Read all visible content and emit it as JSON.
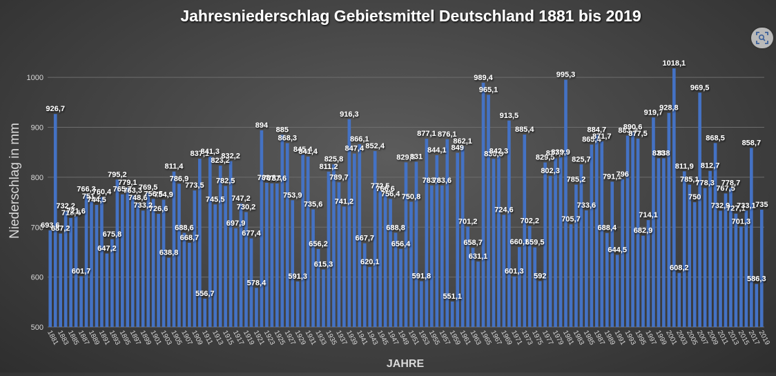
{
  "chart_data": {
    "type": "bar",
    "title": "Jahresniederschlag Gebietsmittel Deutschland 1881 bis 2019",
    "xlabel": "JAHRE",
    "ylabel": "Niederschlag in mm",
    "ylim": [
      500,
      1050
    ],
    "yticks": [
      500,
      600,
      700,
      800,
      900,
      1000
    ],
    "grid": true,
    "legend": "none",
    "bar_color": "#4472c4",
    "categories": [
      "1881",
      "1882",
      "1883",
      "1884",
      "1885",
      "1886",
      "1887",
      "1888",
      "1889",
      "1890",
      "1891",
      "1892",
      "1893",
      "1894",
      "1895",
      "1896",
      "1897",
      "1898",
      "1899",
      "1900",
      "1901",
      "1902",
      "1903",
      "1904",
      "1905",
      "1906",
      "1907",
      "1908",
      "1909",
      "1910",
      "1911",
      "1912",
      "1913",
      "1914",
      "1915",
      "1916",
      "1917",
      "1918",
      "1919",
      "1920",
      "1921",
      "1922",
      "1923",
      "1924",
      "1925",
      "1926",
      "1927",
      "1928",
      "1929",
      "1930",
      "1931",
      "1932",
      "1933",
      "1934",
      "1935",
      "1936",
      "1937",
      "1938",
      "1939",
      "1940",
      "1941",
      "1942",
      "1943",
      "1944",
      "1945",
      "1946",
      "1947",
      "1948",
      "1949",
      "1950",
      "1951",
      "1952",
      "1953",
      "1954",
      "1955",
      "1956",
      "1957",
      "1958",
      "1959",
      "1960",
      "1961",
      "1962",
      "1963",
      "1964",
      "1965",
      "1966",
      "1967",
      "1968",
      "1969",
      "1970",
      "1971",
      "1972",
      "1973",
      "1974",
      "1975",
      "1976",
      "1977",
      "1978",
      "1979",
      "1980",
      "1981",
      "1982",
      "1983",
      "1984",
      "1985",
      "1986",
      "1987",
      "1988",
      "1989",
      "1990",
      "1991",
      "1992",
      "1993",
      "1994",
      "1995",
      "1996",
      "1997",
      "1998",
      "1999",
      "2000",
      "2001",
      "2002",
      "2003",
      "2004",
      "2005",
      "2006",
      "2007",
      "2008",
      "2009",
      "2010",
      "2011",
      "2012",
      "2013",
      "2014",
      "2015",
      "2016",
      "2017",
      "2018",
      "2019"
    ],
    "values": [
      693.6,
      926.7,
      687.2,
      732.2,
      718.4,
      721.6,
      601.7,
      766.3,
      751.2,
      744.5,
      760.4,
      647.2,
      675.8,
      795.2,
      765.7,
      779.1,
      763.3,
      748.6,
      733.2,
      769.5,
      756.5,
      726.6,
      754.9,
      638.8,
      811.4,
      786.9,
      688.6,
      668.7,
      773.5,
      837.1,
      556.7,
      841.3,
      745.5,
      823.2,
      782.5,
      832.2,
      697.9,
      747.2,
      730.2,
      677.4,
      578.4,
      894,
      788.8,
      787.8,
      787.6,
      885,
      868.3,
      753.9,
      591.3,
      845.4,
      841.4,
      735.6,
      656.2,
      615.3,
      811.2,
      825.8,
      789.7,
      741.2,
      916.3,
      847.4,
      866.1,
      667.7,
      620.1,
      852.4,
      772.5,
      766.6,
      756.4,
      688.8,
      656.4,
      829.8,
      750.8,
      831,
      591.8,
      877.1,
      783.6,
      844.1,
      783.6,
      876.1,
      551.1,
      849,
      862.1,
      701.2,
      658.7,
      631.1,
      989.4,
      965.1,
      836.8,
      842.3,
      724.6,
      913.5,
      601.3,
      660.1,
      885.4,
      702.2,
      659.5,
      592,
      829.5,
      802.3,
      837.7,
      839.9,
      995.3,
      705.7,
      785.2,
      825.7,
      733.6,
      865.4,
      884.7,
      871.7,
      688.4,
      791.1,
      644.5,
      796,
      883.3,
      890.6,
      877.5,
      682.9,
      714.1,
      919.7,
      838,
      838,
      928.8,
      1018.1,
      608.2,
      811.9,
      785.1,
      750,
      969.5,
      778.3,
      812.7,
      868.5,
      732.9,
      767.5,
      778.7,
      727.1,
      701.3,
      733.1,
      858.7,
      586.3,
      735
    ],
    "labels": [
      {
        "i": 0,
        "t": "693,6"
      },
      {
        "i": 1,
        "t": "926,7"
      },
      {
        "i": 2,
        "t": "687,2"
      },
      {
        "i": 3,
        "t": "732,2"
      },
      {
        "i": 4,
        "t": "718,4"
      },
      {
        "i": 5,
        "t": "721,6"
      },
      {
        "i": 6,
        "t": "601,7"
      },
      {
        "i": 7,
        "t": "766,3"
      },
      {
        "i": 8,
        "t": "751,2"
      },
      {
        "i": 9,
        "t": "744,5"
      },
      {
        "i": 10,
        "t": "760,4"
      },
      {
        "i": 11,
        "t": "647,2"
      },
      {
        "i": 12,
        "t": "675,8"
      },
      {
        "i": 13,
        "t": "795,2"
      },
      {
        "i": 14,
        "t": "765,7"
      },
      {
        "i": 15,
        "t": "779,1"
      },
      {
        "i": 16,
        "t": "763,3"
      },
      {
        "i": 17,
        "t": "748,6"
      },
      {
        "i": 18,
        "t": "733,2"
      },
      {
        "i": 19,
        "t": "769,5"
      },
      {
        "i": 20,
        "t": "756,5"
      },
      {
        "i": 21,
        "t": "726,6"
      },
      {
        "i": 22,
        "t": "754,9"
      },
      {
        "i": 23,
        "t": "638,8"
      },
      {
        "i": 24,
        "t": "811,4"
      },
      {
        "i": 25,
        "t": "786,9"
      },
      {
        "i": 26,
        "t": "688,6"
      },
      {
        "i": 27,
        "t": "668,7"
      },
      {
        "i": 28,
        "t": "773,5"
      },
      {
        "i": 29,
        "t": "837,1"
      },
      {
        "i": 30,
        "t": "556,7"
      },
      {
        "i": 31,
        "t": "841,3"
      },
      {
        "i": 32,
        "t": "745,5"
      },
      {
        "i": 33,
        "t": "823,2"
      },
      {
        "i": 34,
        "t": "782,5"
      },
      {
        "i": 35,
        "t": "832,2"
      },
      {
        "i": 36,
        "t": "697,9"
      },
      {
        "i": 37,
        "t": "747,2"
      },
      {
        "i": 38,
        "t": "730,2"
      },
      {
        "i": 39,
        "t": "677,4"
      },
      {
        "i": 40,
        "t": "578,4"
      },
      {
        "i": 41,
        "t": "894"
      },
      {
        "i": 42,
        "t": "788,8"
      },
      {
        "i": 43,
        "t": "787,8"
      },
      {
        "i": 44,
        "t": "787,6"
      },
      {
        "i": 45,
        "t": "885"
      },
      {
        "i": 46,
        "t": "868,3"
      },
      {
        "i": 47,
        "t": "753,9"
      },
      {
        "i": 48,
        "t": "591,3"
      },
      {
        "i": 49,
        "t": "845,4"
      },
      {
        "i": 50,
        "t": "841,4"
      },
      {
        "i": 51,
        "t": "735,6"
      },
      {
        "i": 52,
        "t": "656,2"
      },
      {
        "i": 53,
        "t": "615,3"
      },
      {
        "i": 54,
        "t": "811,2"
      },
      {
        "i": 55,
        "t": "825,8"
      },
      {
        "i": 56,
        "t": "789,7"
      },
      {
        "i": 57,
        "t": "741,2"
      },
      {
        "i": 58,
        "t": "916,3"
      },
      {
        "i": 59,
        "t": "847,4"
      },
      {
        "i": 60,
        "t": "866,1"
      },
      {
        "i": 61,
        "t": "667,7"
      },
      {
        "i": 62,
        "t": "620,1"
      },
      {
        "i": 63,
        "t": "852,4"
      },
      {
        "i": 64,
        "t": "772,5"
      },
      {
        "i": 65,
        "t": "766,6"
      },
      {
        "i": 66,
        "t": "756,4"
      },
      {
        "i": 67,
        "t": "688,8"
      },
      {
        "i": 68,
        "t": "656,4"
      },
      {
        "i": 69,
        "t": "829,8"
      },
      {
        "i": 70,
        "t": "750,8"
      },
      {
        "i": 71,
        "t": "831"
      },
      {
        "i": 72,
        "t": "591,8"
      },
      {
        "i": 73,
        "t": "877,1"
      },
      {
        "i": 74,
        "t": "783,6"
      },
      {
        "i": 75,
        "t": "844,1"
      },
      {
        "i": 76,
        "t": "783,6"
      },
      {
        "i": 77,
        "t": "876,1"
      },
      {
        "i": 78,
        "t": "551,1"
      },
      {
        "i": 79,
        "t": "849"
      },
      {
        "i": 80,
        "t": "862,1"
      },
      {
        "i": 81,
        "t": "701,2"
      },
      {
        "i": 82,
        "t": "658,7"
      },
      {
        "i": 83,
        "t": "631,1"
      },
      {
        "i": 84,
        "t": "989,4"
      },
      {
        "i": 85,
        "t": "965,1"
      },
      {
        "i": 86,
        "t": "836,8"
      },
      {
        "i": 87,
        "t": "842,3"
      },
      {
        "i": 88,
        "t": "724,6"
      },
      {
        "i": 89,
        "t": "913,5"
      },
      {
        "i": 90,
        "t": "601,3"
      },
      {
        "i": 91,
        "t": "660,1"
      },
      {
        "i": 92,
        "t": "885,4"
      },
      {
        "i": 93,
        "t": "702,2"
      },
      {
        "i": 94,
        "t": "659,5"
      },
      {
        "i": 95,
        "t": "592"
      },
      {
        "i": 96,
        "t": "829,5"
      },
      {
        "i": 97,
        "t": "802,3"
      },
      {
        "i": 98,
        "t": "837,7"
      },
      {
        "i": 99,
        "t": "839,9"
      },
      {
        "i": 100,
        "t": "995,3"
      },
      {
        "i": 101,
        "t": "705,7"
      },
      {
        "i": 102,
        "t": "785,2"
      },
      {
        "i": 103,
        "t": "825,7"
      },
      {
        "i": 104,
        "t": "733,6"
      },
      {
        "i": 105,
        "t": "865,4"
      },
      {
        "i": 106,
        "t": "884,7"
      },
      {
        "i": 107,
        "t": "871,7"
      },
      {
        "i": 108,
        "t": "688,4"
      },
      {
        "i": 109,
        "t": "791,1"
      },
      {
        "i": 110,
        "t": "644,5"
      },
      {
        "i": 111,
        "t": "796"
      },
      {
        "i": 112,
        "t": "883,3"
      },
      {
        "i": 113,
        "t": "890,6"
      },
      {
        "i": 114,
        "t": "877,5"
      },
      {
        "i": 115,
        "t": "682,9"
      },
      {
        "i": 116,
        "t": "714,1"
      },
      {
        "i": 117,
        "t": "919,7"
      },
      {
        "i": 118,
        "t": "838"
      },
      {
        "i": 119,
        "t": "838"
      },
      {
        "i": 120,
        "t": "928,8"
      },
      {
        "i": 121,
        "t": "1018,1"
      },
      {
        "i": 122,
        "t": "608,2"
      },
      {
        "i": 123,
        "t": "811,9"
      },
      {
        "i": 124,
        "t": "785,1"
      },
      {
        "i": 125,
        "t": "750"
      },
      {
        "i": 126,
        "t": "969,5"
      },
      {
        "i": 127,
        "t": "778,3"
      },
      {
        "i": 128,
        "t": "812,7"
      },
      {
        "i": 129,
        "t": "868,5"
      },
      {
        "i": 130,
        "t": "732,9"
      },
      {
        "i": 131,
        "t": "767,5"
      },
      {
        "i": 132,
        "t": "778,7"
      },
      {
        "i": 133,
        "t": "727,1"
      },
      {
        "i": 134,
        "t": "701,3"
      },
      {
        "i": 135,
        "t": "733,1"
      },
      {
        "i": 136,
        "t": "858,7"
      },
      {
        "i": 137,
        "t": "586,3"
      },
      {
        "i": 138,
        "t": "735"
      }
    ]
  },
  "ui": {
    "zoom_icon": "zoom-frame-icon"
  }
}
